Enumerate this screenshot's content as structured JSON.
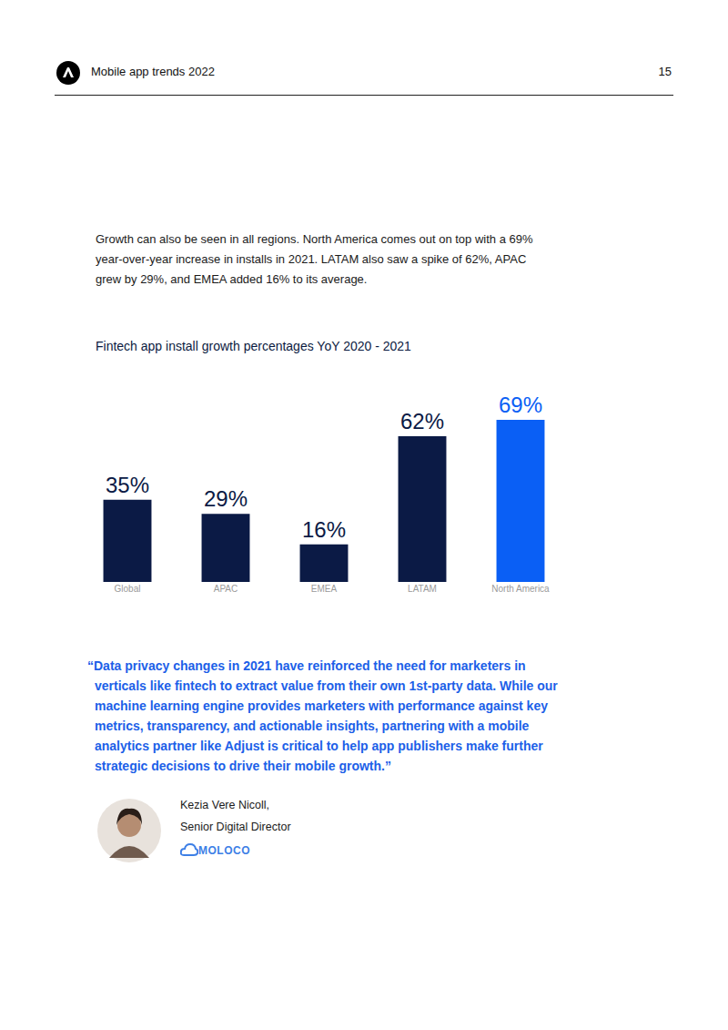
{
  "header": {
    "title": "Mobile app trends 2022",
    "page": "15"
  },
  "paragraph": "Growth can also be seen in all regions. North America comes out on top with a 69% year-over-year increase in installs in 2021. LATAM also saw a spike of 62%, APAC grew by 29%, and EMEA added 16% to its average.",
  "chart_data": {
    "type": "bar",
    "title": "Fintech app install growth percentages YoY 2020 - 2021",
    "categories": [
      "Global",
      "APAC",
      "EMEA",
      "LATAM",
      "North America"
    ],
    "values": [
      35,
      29,
      16,
      62,
      69
    ],
    "value_labels": [
      "35%",
      "29%",
      "16%",
      "62%",
      "69%"
    ],
    "colors": [
      "#0b1a45",
      "#0b1a45",
      "#0b1a45",
      "#0b1a45",
      "#0a5ff5"
    ],
    "ylim": [
      0,
      69
    ],
    "data_labels": true,
    "tick_labels": "x",
    "grid": false
  },
  "quote": {
    "text": "“Data privacy changes in 2021 have reinforced the need for marketers in verticals like fintech to extract value from their own 1st-party data. While our machine learning engine provides marketers with performance against key metrics, transparency, and actionable insights, partnering with a mobile analytics partner like Adjust is critical to help app publishers make further strategic decisions to drive their mobile growth.”",
    "author": "Kezia Vere Nicoll,",
    "role": "Senior Digital Director",
    "company": "MOLOCO"
  }
}
